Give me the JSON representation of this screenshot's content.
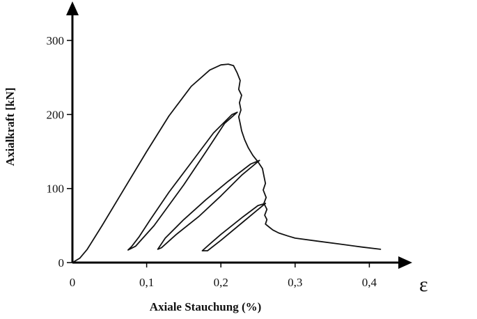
{
  "chart_data": {
    "type": "line",
    "title": "",
    "xlabel": "Axiale Stauchung (%)",
    "ylabel": "Axialkraft [kN]",
    "x_symbol": "ε",
    "xlim": [
      0,
      0.45
    ],
    "ylim": [
      0,
      340
    ],
    "x_ticks": [
      {
        "value": 0,
        "label": "0"
      },
      {
        "value": 0.1,
        "label": "0,1"
      },
      {
        "value": 0.2,
        "label": "0,2"
      },
      {
        "value": 0.3,
        "label": "0,3"
      },
      {
        "value": 0.4,
        "label": "0,4"
      }
    ],
    "y_ticks": [
      {
        "value": 0,
        "label": "0"
      },
      {
        "value": 100,
        "label": "100"
      },
      {
        "value": 200,
        "label": "200"
      },
      {
        "value": 300,
        "label": "300"
      }
    ],
    "grid": false,
    "series": [
      {
        "x": [
          0,
          0.01,
          0.02,
          0.04,
          0.07,
          0.1,
          0.13,
          0.16,
          0.185,
          0.2,
          0.21,
          0.217,
          0.222,
          0.226,
          0.224,
          0.228,
          0.225,
          0.227,
          0.224,
          0.226,
          0.228,
          0.232,
          0.237,
          0.243,
          0.25,
          0.256,
          0.258,
          0.26,
          0.257,
          0.261,
          0.258,
          0.262,
          0.259,
          0.262,
          0.26,
          0.265,
          0.27,
          0.278,
          0.29,
          0.3,
          0.33,
          0.36,
          0.39,
          0.415
        ],
        "y": [
          0,
          6,
          18,
          50,
          100,
          150,
          198,
          238,
          260,
          267,
          268,
          266,
          256,
          246,
          234,
          226,
          216,
          206,
          197,
          188,
          178,
          166,
          155,
          145,
          136,
          127,
          117,
          107,
          98,
          88,
          80,
          72,
          64,
          58,
          52,
          48,
          44,
          40,
          36,
          33,
          29,
          25,
          21,
          18
        ]
      },
      {
        "x": [
          0.222,
          0.215,
          0.19,
          0.16,
          0.13,
          0.105,
          0.09,
          0.08,
          0.075,
          0.085,
          0.11,
          0.15,
          0.18,
          0.205,
          0.222
        ],
        "y": [
          203,
          200,
          175,
          135,
          95,
          58,
          35,
          22,
          17,
          22,
          50,
          105,
          150,
          188,
          203
        ]
      },
      {
        "x": [
          0.252,
          0.24,
          0.21,
          0.18,
          0.15,
          0.125,
          0.115,
          0.12,
          0.14,
          0.17,
          0.2,
          0.228,
          0.252
        ],
        "y": [
          138,
          133,
          110,
          85,
          58,
          33,
          18,
          20,
          38,
          62,
          90,
          118,
          138
        ]
      },
      {
        "x": [
          0.26,
          0.25,
          0.23,
          0.2,
          0.185,
          0.175,
          0.182,
          0.2,
          0.23,
          0.248,
          0.26
        ],
        "y": [
          80,
          77,
          62,
          38,
          25,
          16,
          16,
          30,
          55,
          70,
          80
        ]
      }
    ]
  }
}
